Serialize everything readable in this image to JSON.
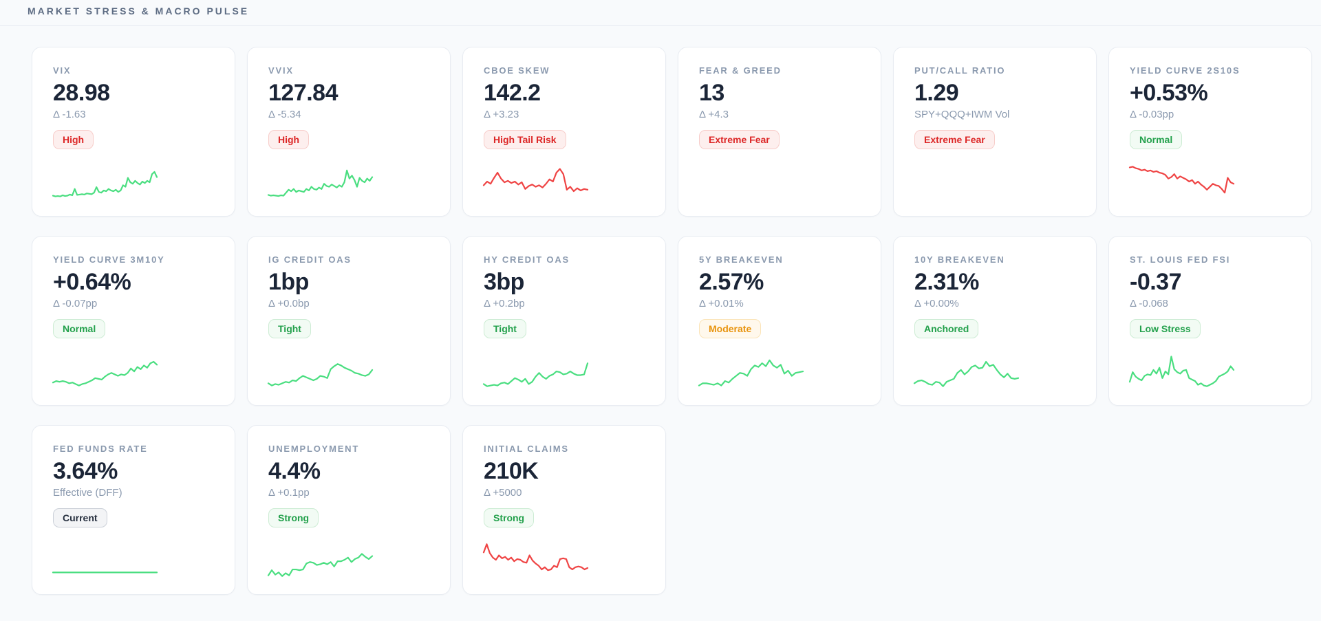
{
  "header": {
    "title": "MARKET STRESS & MACRO PULSE"
  },
  "colors": {
    "spark_green": "#4ade80",
    "spark_red": "#ef4444",
    "badge_red_text": "#dc2626",
    "badge_green_text": "#22a04b",
    "badge_amber_text": "#e8930c",
    "value_text": "#1b2537",
    "muted_text": "#8a99ae",
    "page_bg": "#f8fafc",
    "card_bg": "#ffffff"
  },
  "cards": [
    {
      "title": "VIX",
      "value": "28.98",
      "sub": "Δ -1.63",
      "badge": {
        "label": "High",
        "tone": "red"
      },
      "spark": {
        "color": "green",
        "values": [
          12,
          10,
          11,
          10,
          13,
          11,
          12,
          15,
          13,
          30,
          14,
          15,
          16,
          15,
          18,
          17,
          16,
          20,
          35,
          22,
          20,
          26,
          24,
          30,
          26,
          24,
          28,
          22,
          26,
          40,
          36,
          60,
          48,
          44,
          52,
          46,
          42,
          50,
          46,
          52,
          48,
          70,
          76,
          62
        ]
      }
    },
    {
      "title": "VVIX",
      "value": "127.84",
      "sub": "Δ -5.34",
      "badge": {
        "label": "High",
        "tone": "red"
      },
      "spark": {
        "color": "green",
        "values": [
          14,
          12,
          13,
          12,
          11,
          13,
          12,
          20,
          28,
          24,
          30,
          22,
          26,
          24,
          22,
          30,
          26,
          36,
          30,
          28,
          34,
          30,
          44,
          38,
          36,
          42,
          38,
          34,
          40,
          36,
          48,
          80,
          58,
          66,
          54,
          36,
          60,
          52,
          48,
          58,
          52,
          62
        ]
      }
    },
    {
      "title": "CBOE SKEW",
      "value": "142.2",
      "sub": "Δ +3.23",
      "badge": {
        "label": "High Tail Risk",
        "tone": "red"
      },
      "spark": {
        "color": "red",
        "values": [
          40,
          50,
          44,
          60,
          74,
          58,
          48,
          52,
          46,
          50,
          42,
          48,
          30,
          38,
          42,
          36,
          40,
          34,
          44,
          56,
          50,
          74,
          84,
          70,
          28,
          36,
          24,
          32,
          26,
          30,
          28
        ]
      }
    },
    {
      "title": "FEAR & GREED",
      "value": "13",
      "sub": "Δ +4.3",
      "badge": {
        "label": "Extreme Fear",
        "tone": "red"
      },
      "spark": null
    },
    {
      "title": "PUT/CALL RATIO",
      "value": "1.29",
      "sub": "SPY+QQQ+IWM Vol",
      "badge": {
        "label": "Extreme Fear",
        "tone": "red"
      },
      "spark": null
    },
    {
      "title": "YIELD CURVE 2S10S",
      "value": "+0.53%",
      "sub": "Δ -0.03pp",
      "badge": {
        "label": "Normal",
        "tone": "green"
      },
      "spark": {
        "color": "red",
        "values": [
          88,
          90,
          86,
          84,
          80,
          82,
          78,
          80,
          76,
          78,
          74,
          72,
          68,
          58,
          62,
          70,
          58,
          64,
          60,
          56,
          50,
          54,
          44,
          50,
          42,
          36,
          28,
          36,
          44,
          40,
          38,
          30,
          20,
          60,
          48,
          44
        ]
      }
    },
    {
      "title": "YIELD CURVE 3M10Y",
      "value": "+0.64%",
      "sub": "Δ -0.07pp",
      "badge": {
        "label": "Normal",
        "tone": "green"
      },
      "spark": {
        "color": "green",
        "values": [
          18,
          22,
          20,
          22,
          20,
          16,
          18,
          14,
          10,
          14,
          16,
          20,
          24,
          30,
          28,
          26,
          34,
          40,
          44,
          40,
          36,
          40,
          38,
          44,
          56,
          48,
          60,
          54,
          64,
          58,
          70,
          74,
          66
        ]
      }
    },
    {
      "title": "IG CREDIT OAS",
      "value": "1bp",
      "sub": "Δ +0.0bp",
      "badge": {
        "label": "Tight",
        "tone": "green"
      },
      "spark": {
        "color": "green",
        "values": [
          16,
          10,
          14,
          12,
          16,
          20,
          18,
          24,
          22,
          30,
          36,
          32,
          28,
          24,
          28,
          36,
          34,
          30,
          54,
          62,
          68,
          64,
          58,
          54,
          50,
          44,
          42,
          38,
          36,
          40,
          52
        ]
      }
    },
    {
      "title": "HY CREDIT OAS",
      "value": "3bp",
      "sub": "Δ +0.2bp",
      "badge": {
        "label": "Tight",
        "tone": "green"
      },
      "spark": {
        "color": "green",
        "values": [
          14,
          8,
          10,
          12,
          10,
          16,
          18,
          14,
          22,
          30,
          26,
          20,
          28,
          14,
          20,
          34,
          44,
          34,
          28,
          36,
          40,
          48,
          46,
          40,
          42,
          48,
          42,
          38,
          38,
          40,
          70
        ]
      }
    },
    {
      "title": "5Y BREAKEVEN",
      "value": "2.57%",
      "sub": "Δ +0.01%",
      "badge": {
        "label": "Moderate",
        "tone": "amber"
      },
      "spark": {
        "color": "green",
        "values": [
          10,
          16,
          16,
          14,
          12,
          16,
          10,
          22,
          18,
          28,
          36,
          44,
          42,
          36,
          54,
          64,
          60,
          70,
          62,
          78,
          64,
          58,
          66,
          42,
          50,
          36,
          44,
          46,
          48
        ]
      }
    },
    {
      "title": "10Y BREAKEVEN",
      "value": "2.31%",
      "sub": "Δ +0.00%",
      "badge": {
        "label": "Anchored",
        "tone": "green"
      },
      "spark": {
        "color": "green",
        "values": [
          16,
          22,
          24,
          20,
          14,
          12,
          20,
          18,
          8,
          20,
          24,
          28,
          44,
          52,
          40,
          48,
          60,
          64,
          56,
          58,
          74,
          62,
          66,
          52,
          40,
          32,
          42,
          30,
          28,
          30
        ]
      }
    },
    {
      "title": "ST. LOUIS FED FSI",
      "value": "-0.37",
      "sub": "Δ -0.068",
      "badge": {
        "label": "Low Stress",
        "tone": "green"
      },
      "spark": {
        "color": "green",
        "values": [
          20,
          46,
          34,
          28,
          24,
          36,
          40,
          38,
          52,
          42,
          58,
          30,
          48,
          40,
          88,
          54,
          46,
          42,
          50,
          52,
          30,
          26,
          22,
          12,
          16,
          10,
          8,
          12,
          16,
          22,
          34,
          38,
          42,
          48,
          62,
          52
        ]
      }
    },
    {
      "title": "FED FUNDS RATE",
      "value": "3.64%",
      "sub": "Effective (DFF)",
      "badge": {
        "label": "Current",
        "tone": "neutral"
      },
      "spark": {
        "color": "green",
        "values": [
          16,
          16
        ]
      }
    },
    {
      "title": "UNEMPLOYMENT",
      "value": "4.4%",
      "sub": "Δ +0.1pp",
      "badge": {
        "label": "Strong",
        "tone": "green"
      },
      "spark": {
        "color": "green",
        "values": [
          8,
          22,
          10,
          16,
          6,
          14,
          8,
          24,
          24,
          22,
          24,
          40,
          44,
          42,
          36,
          38,
          42,
          38,
          44,
          32,
          46,
          46,
          50,
          56,
          44,
          52,
          56,
          66,
          58,
          52,
          60
        ]
      }
    },
    {
      "title": "INITIAL CLAIMS",
      "value": "210K",
      "sub": "Δ +5000",
      "badge": {
        "label": "Strong",
        "tone": "green"
      },
      "spark": {
        "color": "red",
        "values": [
          70,
          92,
          68,
          56,
          50,
          62,
          54,
          58,
          50,
          56,
          46,
          52,
          50,
          44,
          42,
          62,
          48,
          40,
          34,
          24,
          30,
          22,
          24,
          34,
          30,
          52,
          54,
          52,
          30,
          24,
          30,
          32,
          30,
          24,
          28
        ]
      }
    }
  ]
}
